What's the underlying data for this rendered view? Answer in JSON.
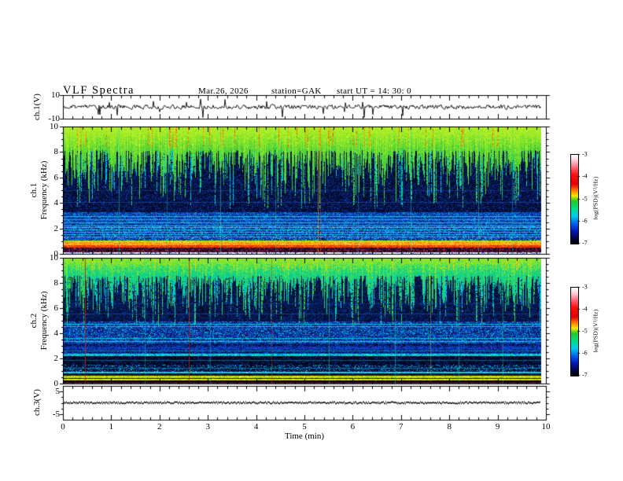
{
  "header": {
    "title": "VLF Spectra",
    "date": "Mar.26, 2026",
    "station": "station=GAK",
    "start_ut": "start UT  =   14: 30: 0"
  },
  "x_axis": {
    "label": "Time  (min)",
    "ticks": [
      "0",
      "1",
      "2",
      "3",
      "4",
      "5",
      "6",
      "7",
      "8",
      "9",
      "10"
    ],
    "minor_step": 0.2,
    "range_min": [
      0,
      10
    ]
  },
  "colorbar": {
    "label": "log(PSD)(V²/Hz)",
    "ticks": [
      "-3",
      "-4",
      "-5",
      "-6",
      "-7"
    ],
    "gradient": [
      [
        "#ffffff",
        0
      ],
      [
        "#ffd2da",
        0.06
      ],
      [
        "#ff6a7a",
        0.14
      ],
      [
        "#ff1010",
        0.22
      ],
      [
        "#e60000",
        0.33
      ],
      [
        "#ff7800",
        0.4
      ],
      [
        "#f5e800",
        0.46
      ],
      [
        "#28c828",
        0.52
      ],
      [
        "#00dc8c",
        0.61
      ],
      [
        "#00ccee",
        0.69
      ],
      [
        "#0064f0",
        0.77
      ],
      [
        "#0018b4",
        0.86
      ],
      [
        "#000850",
        0.93
      ],
      [
        "#000000",
        1
      ]
    ]
  },
  "panels": {
    "ch1_wave": {
      "ylabel": "ch.1(V)",
      "yticks": [
        "10",
        "-10"
      ]
    },
    "ch1_spec": {
      "ylabel_line1": "ch.1",
      "ylabel_line2": "Frequency (kHz)",
      "yticks": [
        "10",
        "8",
        "6",
        "4",
        "2",
        "0"
      ]
    },
    "ch2_spec": {
      "ylabel_line1": "ch.2",
      "ylabel_line2": "Frequency (kHz)",
      "yticks": [
        "10",
        "8",
        "6",
        "4",
        "2",
        "0"
      ]
    },
    "ch3_wave": {
      "ylabel": "ch.3(V)",
      "yticks": [
        "5",
        "-5"
      ]
    }
  },
  "chart_data": [
    {
      "type": "line",
      "panel": "ch.1 time series",
      "ylabel": "ch.1(V)",
      "ylim": [
        -10,
        10
      ],
      "xlim": [
        0,
        10
      ],
      "seed": 11,
      "line_color": "#000000",
      "character": "continuous broadband noise centered on 0 V with irregular spikes to about ±8 V"
    },
    {
      "type": "heatmap",
      "panel": "ch.1 spectrogram",
      "ylabel": "ch.1 Frequency (kHz)",
      "ylim": [
        0,
        10
      ],
      "xlim": [
        0,
        10
      ],
      "zlabel": "log(PSD)(V²/Hz)",
      "zlim": [
        -7,
        -3
      ],
      "seed": 42,
      "visual": {
        "top_band": {
          "f_base": 8.15,
          "jag": 1.9,
          "deep_prob": 0.22,
          "deep_extra": 2.6,
          "palette": [
            "#2fbe46",
            "#46cc3c",
            "#63dc30",
            "#8ae62c",
            "#b4ee24"
          ],
          "hot_prob": 0.055,
          "hot_f": 8.4,
          "hot_palette": [
            "#ff9000",
            "#ff5000",
            "#e8c800"
          ]
        },
        "streaks": {
          "prob": 0.3,
          "fmin": 3.6,
          "fmax": 6.8,
          "palette": [
            "#2ec86e",
            "#00d2b4",
            "#35d24b",
            "#00c8e6"
          ]
        },
        "bands": [
          {
            "f": [
              3.3,
              10
            ],
            "base": "#030d36",
            "p": 0.42,
            "dk": 1,
            "palette": [
              "#061c5e",
              "#00050f",
              "#0a2e8c",
              "#123cb4"
            ]
          },
          {
            "f": [
              2.28,
              3.3
            ],
            "base": "#0733a2",
            "p": 0.75,
            "dk": 1,
            "palette": [
              "#0a4ad2",
              "#03165a",
              "#00a8cc",
              "#0d55e6"
            ]
          },
          {
            "f": [
              1.1,
              2.28
            ],
            "base": "#0838b4",
            "p": 0.85,
            "dk": 1,
            "palette": [
              "#0c52e6",
              "#041a6e",
              "#00c8e0",
              "#1668ff",
              "#02103c"
            ]
          },
          {
            "f": [
              0.93,
              1.1
            ],
            "base": "#b4dc14",
            "p": 0.7,
            "palette": [
              "#e6e600",
              "#8cc80a",
              "#f0d200"
            ]
          },
          {
            "f": [
              0.72,
              0.93
            ],
            "base": "#ff9600",
            "p": 0.8,
            "palette": [
              "#ffb400",
              "#ff6e00",
              "#ffd23c"
            ]
          },
          {
            "f": [
              0.52,
              0.72
            ],
            "base": "#f04800",
            "p": 0.8,
            "palette": [
              "#ff2800",
              "#c83200",
              "#ff7800"
            ]
          },
          {
            "f": [
              0.16,
              0.52
            ],
            "base": "#1e0420",
            "p": 0.65,
            "palette": [
              "#5a1444",
              "#8c2050",
              "#2a0a3c",
              "#b42828",
              "#000000"
            ]
          },
          {
            "f": [
              0,
              0.16
            ],
            "base": "#dce4fa",
            "p": 0.55,
            "palette": [
              "#3c5ae6",
              "#8ca0ff",
              "#ffffff",
              "#ffffff"
            ]
          }
        ],
        "hlines": [
          {
            "f": 2.95,
            "c": "#00d8e8",
            "a": 0.8
          },
          {
            "f": 2.7,
            "c": "#00d8e8",
            "a": 0.7
          },
          {
            "f": 2.5,
            "c": "#40e0f0",
            "a": 0.6
          },
          {
            "f": 2.25,
            "c": "#00d8e8",
            "a": 0.85
          },
          {
            "f": 2.1,
            "c": "#66e6f0",
            "a": 0.7
          },
          {
            "f": 1.93,
            "c": "#00d8e8",
            "a": 0.8
          },
          {
            "f": 1.75,
            "c": "#40e0f0",
            "a": 0.6
          },
          {
            "f": 1.55,
            "c": "#00d8e8",
            "a": 0.7
          },
          {
            "f": 1.35,
            "c": "#66e6f0",
            "a": 0.55
          },
          {
            "f": 4.1,
            "c": "#2a64d2",
            "a": 0.45
          },
          {
            "f": 5.0,
            "c": "#2a64d2",
            "a": 0.35
          }
        ],
        "vlines": [
          {
            "m": 1.15,
            "c": "#00e0c8",
            "a": 0.5
          },
          {
            "m": 2.15,
            "c": "#00e0c8",
            "a": 0.35
          },
          {
            "m": 3.25,
            "c": "#40e890",
            "a": 0.5
          },
          {
            "m": 4.4,
            "c": "#40e890",
            "a": 0.35
          },
          {
            "m": 5.28,
            "c": "#ffb400",
            "a": 0.55
          },
          {
            "m": 5.32,
            "c": "#ff5000",
            "a": 0.4
          },
          {
            "m": 6.1,
            "c": "#00e0c8",
            "a": 0.35
          },
          {
            "m": 7.2,
            "c": "#00e0c8",
            "a": 0.45
          },
          {
            "m": 8.6,
            "c": "#40e890",
            "a": 0.4
          },
          {
            "m": 9.3,
            "c": "#00e0c8",
            "a": 0.35
          }
        ]
      }
    },
    {
      "type": "heatmap",
      "panel": "ch.2 spectrogram",
      "ylabel": "ch.2 Frequency (kHz)",
      "ylim": [
        0,
        10
      ],
      "xlim": [
        0,
        10
      ],
      "zlabel": "log(PSD)(V²/Hz)",
      "zlim": [
        -7,
        -3
      ],
      "seed": 77,
      "visual": {
        "top_band": {
          "f_base": 8.6,
          "jag": 0.9,
          "deep_prob": 0.3,
          "deep_extra": 2.2,
          "palette": [
            "#00c8b4",
            "#2fd264",
            "#00d296",
            "#52e050",
            "#96e628"
          ],
          "hot_prob": 0.04,
          "hot_f": 9.0,
          "hot_palette": [
            "#e8e000",
            "#ffb400"
          ]
        },
        "streaks": {
          "prob": 0.42,
          "fmin": 4.6,
          "fmax": 7.6,
          "palette": [
            "#00d2b4",
            "#2ec86e",
            "#00c8e6",
            "#35d24b"
          ]
        },
        "bands": [
          {
            "f": [
              5.0,
              10
            ],
            "base": "#041038",
            "p": 0.45,
            "dk": 1,
            "palette": [
              "#072060",
              "#00060f",
              "#0c3296",
              "#0030a0"
            ]
          },
          {
            "f": [
              3.5,
              5.0
            ],
            "base": "#0838b4",
            "p": 0.8,
            "dk": 1,
            "palette": [
              "#0c50e0",
              "#051e6e",
              "#00b4d8",
              "#031352"
            ]
          },
          {
            "f": [
              3.2,
              3.5
            ],
            "base": "#0a42c3",
            "p": 0.75,
            "dk": 1,
            "palette": [
              "#0c50e0",
              "#041a6e",
              "#00a8cc"
            ]
          },
          {
            "f": [
              2.95,
              3.2
            ],
            "base": "#031049",
            "p": 0.6,
            "dk": 1,
            "palette": [
              "#0a3cb4",
              "#000820",
              "#0848cc"
            ]
          },
          {
            "f": [
              2.72,
              2.95
            ],
            "base": "#0a42c3",
            "p": 0.7,
            "dk": 1,
            "palette": [
              "#0c50e0",
              "#041a6e"
            ]
          },
          {
            "f": [
              2.5,
              2.72
            ],
            "base": "#031046",
            "p": 0.6,
            "dk": 1,
            "palette": [
              "#0a3cb4",
              "#000a28",
              "#0850d2"
            ]
          },
          {
            "f": [
              2.38,
              2.5
            ],
            "base": "#0a42c3",
            "p": 0.7,
            "dk": 1,
            "palette": [
              "#0c50e0",
              "#051e6e"
            ]
          },
          {
            "f": [
              2.2,
              2.38
            ],
            "base": "#00c8c8",
            "p": 0.6,
            "palette": [
              "#00e0d2",
              "#0a64dc",
              "#40e8e0"
            ]
          },
          {
            "f": [
              1.52,
              2.2
            ],
            "base": "#01061e",
            "p": 0.5,
            "palette": [
              "#04164b",
              "#000000",
              "#0a2e8c"
            ]
          },
          {
            "f": [
              0.98,
              1.52
            ],
            "base": "#030c32",
            "p": 0.55,
            "palette": [
              "#071e64",
              "#000000",
              "#0c3cb4",
              "#00b4d8"
            ]
          },
          {
            "f": [
              0.84,
              0.98
            ],
            "base": "#00d2be",
            "p": 0.6,
            "palette": [
              "#00e6d2",
              "#14b4e6",
              "#50f0dc"
            ]
          },
          {
            "f": [
              0.64,
              0.84
            ],
            "base": "#041028",
            "p": 0.5,
            "palette": [
              "#0a2864",
              "#000000"
            ]
          },
          {
            "f": [
              0.5,
              0.64
            ],
            "base": "#b4dc0a",
            "p": 0.7,
            "palette": [
              "#d2e600",
              "#8cc814",
              "#e6f046"
            ]
          },
          {
            "f": [
              0.4,
              0.5
            ],
            "base": "#0a140a",
            "p": 0.5,
            "palette": [
              "#28460f",
              "#000000"
            ]
          },
          {
            "f": [
              0.28,
              0.4
            ],
            "base": "#e0e014",
            "p": 0.7,
            "palette": [
              "#f0f000",
              "#c8d200",
              "#fafa64"
            ]
          },
          {
            "f": [
              0.1,
              0.28
            ],
            "base": "#050505",
            "p": 0.5,
            "palette": [
              "#141414",
              "#000000"
            ]
          },
          {
            "f": [
              0.04,
              0.1
            ],
            "base": "#c81414",
            "p": 0.6,
            "palette": [
              "#e60a0a",
              "#960a0a"
            ]
          },
          {
            "f": [
              0,
              0.04
            ],
            "base": "#000000",
            "p": 0,
            "palette": [
              "#000000"
            ]
          }
        ],
        "hlines": [
          {
            "f": 4.78,
            "c": "#00d8e8",
            "a": 0.75
          },
          {
            "f": 4.55,
            "c": "#40e0f0",
            "a": 0.6
          },
          {
            "f": 3.62,
            "c": "#00d8e8",
            "a": 0.8
          },
          {
            "f": 3.38,
            "c": "#66e6f0",
            "a": 0.6
          },
          {
            "f": 2.62,
            "c": "#00d8e8",
            "a": 0.5
          },
          {
            "f": 5.55,
            "c": "#2a64d2",
            "a": 0.45
          },
          {
            "f": 6.4,
            "c": "#1e50be",
            "a": 0.35
          },
          {
            "f": 1.9,
            "c": "#00d8e8",
            "a": 0.4
          },
          {
            "f": 1.28,
            "c": "#00c8e0",
            "a": 0.45
          }
        ],
        "vlines": [
          {
            "m": 0.46,
            "c": "#cc1e00",
            "a": 0.8
          },
          {
            "m": 1.7,
            "c": "#00e0c8",
            "a": 0.4
          },
          {
            "m": 2.61,
            "c": "#b41e00",
            "a": 0.8
          },
          {
            "m": 3.05,
            "c": "#00e0c8",
            "a": 0.35
          },
          {
            "m": 4.32,
            "c": "#c83c00",
            "a": 0.45
          },
          {
            "m": 5.5,
            "c": "#40e890",
            "a": 0.4
          },
          {
            "m": 6.88,
            "c": "#00e0c8",
            "a": 0.5
          },
          {
            "m": 7.6,
            "c": "#d2e600",
            "a": 0.35
          },
          {
            "m": 8.2,
            "c": "#00e0c8",
            "a": 0.45
          },
          {
            "m": 9.1,
            "c": "#40e890",
            "a": 0.35
          }
        ]
      }
    },
    {
      "type": "line",
      "panel": "ch.3 time series",
      "ylabel": "ch.3(V)",
      "ylim": [
        -7.5,
        7.5
      ],
      "xlim": [
        0,
        10
      ],
      "seed": 5,
      "line_color": "#000000",
      "character": "flat speckled trace at 0 V ending near 9.85 min"
    }
  ]
}
